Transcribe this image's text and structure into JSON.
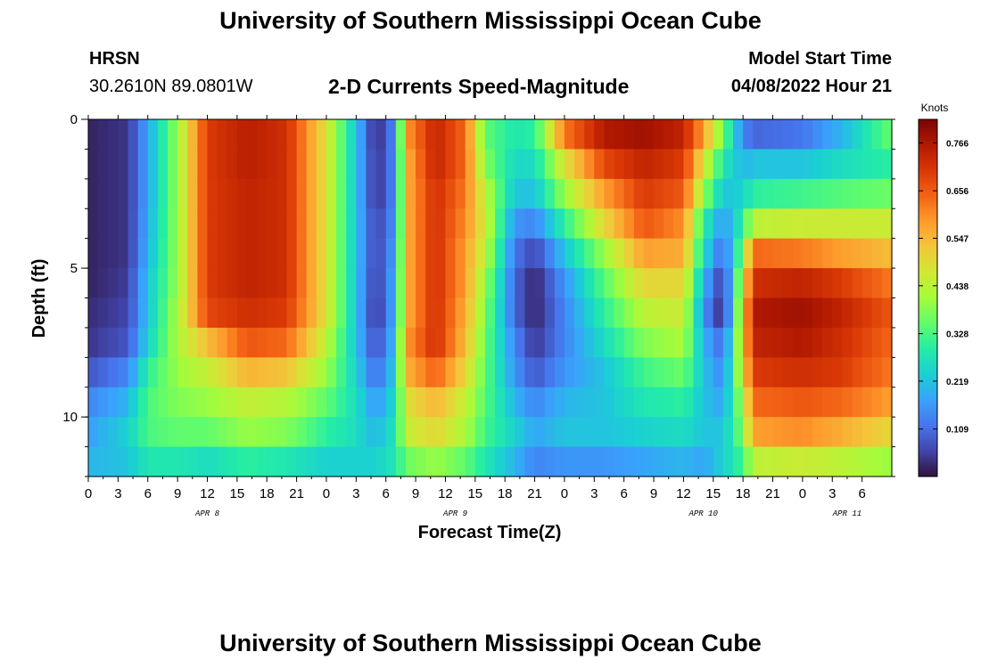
{
  "page": {
    "title": "University of Southern Mississippi Ocean Cube",
    "station_code": "HRSN",
    "station_coords": "30.2610N  89.0801W",
    "subtitle": "2-D Currents Speed-Magnitude",
    "model_start_label": "Model Start Time",
    "model_start_value": "04/08/2022 Hour 21",
    "footer_title": "University of Southern Mississippi Ocean Cube"
  },
  "chart_data": {
    "type": "heatmap",
    "title": "2-D Currents Speed-Magnitude",
    "xlabel": "Forecast Time(Z)",
    "ylabel": "Depth (ft)",
    "xlim_hours": [
      0,
      81
    ],
    "ylim": [
      0,
      12
    ],
    "x_tick_labels": [
      "0",
      "3",
      "6",
      "9",
      "12",
      "15",
      "18",
      "21",
      "0",
      "3",
      "6",
      "9",
      "12",
      "15",
      "18",
      "21",
      "0",
      "3",
      "6",
      "9",
      "12",
      "15",
      "18",
      "21",
      "0",
      "3",
      "6"
    ],
    "y_tick_values": [
      0,
      5,
      10
    ],
    "y_tick_labels": [
      "0",
      "5",
      "10"
    ],
    "date_labels": [
      {
        "label": "APR 8",
        "hour": 12
      },
      {
        "label": "APR 9",
        "hour": 37
      },
      {
        "label": "APR 10",
        "hour": 62
      },
      {
        "label": "APR 11",
        "hour": 76.5
      }
    ],
    "colorbar": {
      "unit": "Knots",
      "min": 0,
      "max": 0.82,
      "tick_values": [
        0.109,
        0.219,
        0.328,
        0.438,
        0.547,
        0.656,
        0.766
      ],
      "tick_labels": [
        "0.109",
        "0.219",
        "0.328",
        "0.438",
        "0.547",
        "0.656",
        "0.766"
      ],
      "colors": [
        "#30123b",
        "#4145ab",
        "#4675ed",
        "#39a2fc",
        "#1bcfd4",
        "#24eca6",
        "#61fc6c",
        "#a4fc3b",
        "#d1e834",
        "#f3c63a",
        "#fe9b2d",
        "#f36315",
        "#d93806",
        "#b11901",
        "#7a0403"
      ]
    },
    "depth_levels_ft": [
      0.5,
      1.5,
      2.5,
      3.5,
      4.5,
      5.5,
      6.5,
      7.5,
      8.5,
      9.5,
      10.5,
      11.5
    ],
    "hour_step": 1,
    "speed_keyframes_knots": [
      {
        "hour": 0,
        "speeds": [
          0.02,
          0.02,
          0.02,
          0.02,
          0.02,
          0.02,
          0.03,
          0.04,
          0.08,
          0.14,
          0.17,
          0.2
        ]
      },
      {
        "hour": 4,
        "speeds": [
          0.04,
          0.04,
          0.04,
          0.04,
          0.04,
          0.05,
          0.06,
          0.08,
          0.14,
          0.2,
          0.24,
          0.22
        ]
      },
      {
        "hour": 6,
        "speeds": [
          0.18,
          0.18,
          0.18,
          0.19,
          0.2,
          0.22,
          0.22,
          0.24,
          0.3,
          0.33,
          0.33,
          0.28
        ]
      },
      {
        "hour": 9,
        "speeds": [
          0.4,
          0.4,
          0.4,
          0.4,
          0.4,
          0.4,
          0.42,
          0.42,
          0.4,
          0.38,
          0.35,
          0.28
        ]
      },
      {
        "hour": 12,
        "speeds": [
          0.7,
          0.7,
          0.7,
          0.7,
          0.7,
          0.7,
          0.68,
          0.54,
          0.45,
          0.4,
          0.35,
          0.26
        ]
      },
      {
        "hour": 16,
        "speeds": [
          0.75,
          0.75,
          0.74,
          0.74,
          0.74,
          0.74,
          0.72,
          0.66,
          0.55,
          0.45,
          0.4,
          0.3
        ]
      },
      {
        "hour": 20,
        "speeds": [
          0.72,
          0.72,
          0.72,
          0.72,
          0.72,
          0.72,
          0.7,
          0.64,
          0.53,
          0.43,
          0.38,
          0.28
        ]
      },
      {
        "hour": 24,
        "speeds": [
          0.48,
          0.48,
          0.48,
          0.48,
          0.48,
          0.48,
          0.48,
          0.44,
          0.4,
          0.35,
          0.3,
          0.24
        ]
      },
      {
        "hour": 27,
        "speeds": [
          0.22,
          0.22,
          0.22,
          0.22,
          0.22,
          0.22,
          0.22,
          0.22,
          0.24,
          0.26,
          0.26,
          0.24
        ]
      },
      {
        "hour": 29,
        "speeds": [
          0.02,
          0.03,
          0.03,
          0.05,
          0.05,
          0.04,
          0.03,
          0.06,
          0.1,
          0.16,
          0.2,
          0.24
        ]
      },
      {
        "hour": 31,
        "speeds": [
          0.15,
          0.15,
          0.15,
          0.16,
          0.18,
          0.2,
          0.2,
          0.22,
          0.24,
          0.26,
          0.28,
          0.28
        ]
      },
      {
        "hour": 32,
        "speeds": [
          0.58,
          0.55,
          0.55,
          0.55,
          0.55,
          0.55,
          0.55,
          0.58,
          0.55,
          0.48,
          0.45,
          0.36
        ]
      },
      {
        "hour": 35,
        "speeds": [
          0.74,
          0.74,
          0.72,
          0.72,
          0.72,
          0.72,
          0.72,
          0.72,
          0.65,
          0.55,
          0.5,
          0.4
        ]
      },
      {
        "hour": 38,
        "speeds": [
          0.64,
          0.64,
          0.62,
          0.6,
          0.58,
          0.58,
          0.56,
          0.54,
          0.5,
          0.45,
          0.42,
          0.35
        ]
      },
      {
        "hour": 40,
        "speeds": [
          0.35,
          0.38,
          0.44,
          0.46,
          0.44,
          0.4,
          0.38,
          0.36,
          0.35,
          0.34,
          0.32,
          0.28
        ]
      },
      {
        "hour": 43,
        "speeds": [
          0.28,
          0.25,
          0.22,
          0.16,
          0.12,
          0.1,
          0.1,
          0.14,
          0.16,
          0.2,
          0.24,
          0.2
        ]
      },
      {
        "hour": 45,
        "speeds": [
          0.3,
          0.26,
          0.22,
          0.14,
          0.06,
          0.02,
          0.02,
          0.04,
          0.08,
          0.14,
          0.18,
          0.14
        ]
      },
      {
        "hour": 48,
        "speeds": [
          0.62,
          0.48,
          0.4,
          0.3,
          0.22,
          0.16,
          0.14,
          0.14,
          0.16,
          0.2,
          0.22,
          0.16
        ]
      },
      {
        "hour": 52,
        "speeds": [
          0.76,
          0.68,
          0.58,
          0.5,
          0.4,
          0.34,
          0.3,
          0.26,
          0.22,
          0.22,
          0.22,
          0.16
        ]
      },
      {
        "hour": 56,
        "speeds": [
          0.78,
          0.74,
          0.7,
          0.66,
          0.58,
          0.5,
          0.44,
          0.38,
          0.32,
          0.28,
          0.24,
          0.18
        ]
      },
      {
        "hour": 60,
        "speeds": [
          0.74,
          0.7,
          0.66,
          0.6,
          0.56,
          0.5,
          0.46,
          0.42,
          0.36,
          0.3,
          0.26,
          0.2
        ]
      },
      {
        "hour": 62,
        "speeds": [
          0.58,
          0.48,
          0.4,
          0.3,
          0.26,
          0.2,
          0.16,
          0.2,
          0.22,
          0.22,
          0.22,
          0.18
        ]
      },
      {
        "hour": 64,
        "speeds": [
          0.36,
          0.28,
          0.22,
          0.16,
          0.1,
          0.04,
          0.02,
          0.1,
          0.14,
          0.18,
          0.22,
          0.24
        ]
      },
      {
        "hour": 66,
        "speeds": [
          0.14,
          0.2,
          0.24,
          0.3,
          0.38,
          0.46,
          0.5,
          0.5,
          0.48,
          0.42,
          0.38,
          0.32
        ]
      },
      {
        "hour": 67,
        "speeds": [
          0.1,
          0.22,
          0.3,
          0.44,
          0.64,
          0.72,
          0.76,
          0.74,
          0.7,
          0.64,
          0.58,
          0.44
        ]
      },
      {
        "hour": 72,
        "speeds": [
          0.12,
          0.22,
          0.32,
          0.46,
          0.62,
          0.74,
          0.78,
          0.76,
          0.72,
          0.66,
          0.6,
          0.46
        ]
      },
      {
        "hour": 76,
        "speeds": [
          0.2,
          0.26,
          0.34,
          0.46,
          0.58,
          0.7,
          0.74,
          0.72,
          0.7,
          0.64,
          0.56,
          0.44
        ]
      },
      {
        "hour": 81,
        "speeds": [
          0.36,
          0.3,
          0.36,
          0.46,
          0.54,
          0.62,
          0.66,
          0.64,
          0.62,
          0.58,
          0.5,
          0.4
        ]
      }
    ]
  }
}
